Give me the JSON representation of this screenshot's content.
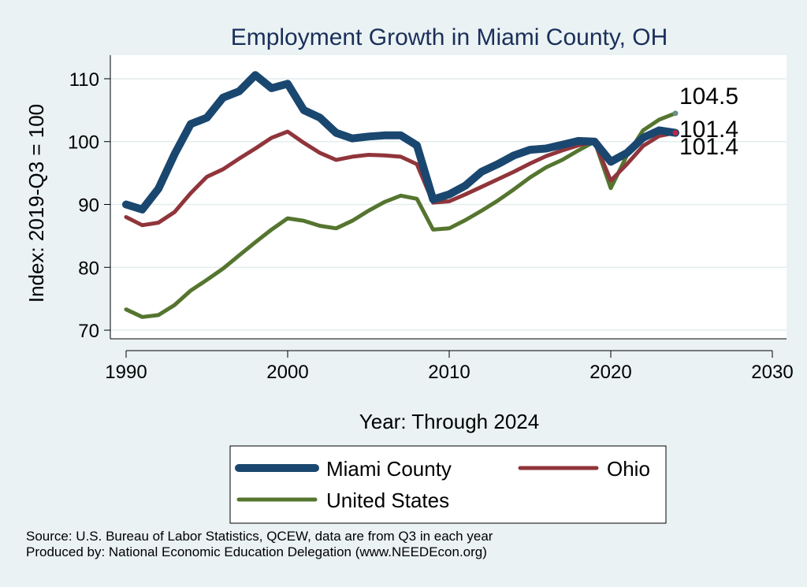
{
  "chart_data": {
    "type": "line",
    "title": "Employment Growth in Miami County, OH",
    "xlabel": "Year: Through 2024",
    "ylabel": "Index: 2019-Q3 = 100",
    "xlim": [
      1990,
      2030
    ],
    "ylim": [
      68,
      112
    ],
    "xticks": [
      1990,
      2000,
      2010,
      2020,
      2030
    ],
    "yticks": [
      70,
      80,
      90,
      100,
      110
    ],
    "grid": true,
    "legend_position": "bottom",
    "x": [
      1990,
      1991,
      1992,
      1993,
      1994,
      1995,
      1996,
      1997,
      1998,
      1999,
      2000,
      2001,
      2002,
      2003,
      2004,
      2005,
      2006,
      2007,
      2008,
      2009,
      2010,
      2011,
      2012,
      2013,
      2014,
      2015,
      2016,
      2017,
      2018,
      2019,
      2020,
      2021,
      2022,
      2023,
      2024
    ],
    "series": [
      {
        "name": "Miami  County",
        "color": "#1a476f",
        "values": [
          90.0,
          89.2,
          92.5,
          98.0,
          102.8,
          103.8,
          107.0,
          108.0,
          110.6,
          108.5,
          109.2,
          105.0,
          103.8,
          101.4,
          100.5,
          100.8,
          101.0,
          101.0,
          99.4,
          90.8,
          91.6,
          93.0,
          95.2,
          96.4,
          97.8,
          98.7,
          98.9,
          99.5,
          100.1,
          100.0,
          96.8,
          98.2,
          100.6,
          101.8,
          101.4
        ]
      },
      {
        "name": "Ohio",
        "color": "#90353b",
        "values": [
          88.0,
          86.7,
          87.1,
          88.8,
          91.8,
          94.4,
          95.6,
          97.3,
          98.9,
          100.6,
          101.6,
          99.8,
          98.2,
          97.1,
          97.6,
          97.9,
          97.8,
          97.6,
          96.4,
          90.3,
          90.5,
          91.6,
          92.8,
          94.0,
          95.2,
          96.5,
          97.7,
          98.6,
          99.4,
          100.0,
          93.8,
          96.4,
          99.3,
          100.9,
          101.4
        ]
      },
      {
        "name": "United States",
        "color": "#55752f",
        "values": [
          73.3,
          72.1,
          72.4,
          74.0,
          76.3,
          78.0,
          79.8,
          81.9,
          84.0,
          86.0,
          87.8,
          87.4,
          86.6,
          86.2,
          87.4,
          89.0,
          90.4,
          91.4,
          90.9,
          86.0,
          86.2,
          87.5,
          89.0,
          90.6,
          92.4,
          94.3,
          95.9,
          97.1,
          98.6,
          100.0,
          92.6,
          97.8,
          101.8,
          103.5,
          104.5
        ]
      }
    ],
    "end_labels": [
      {
        "text": "104.5",
        "color": "#6b8e8e"
      },
      {
        "text": "101.4",
        "color": "#c0234a"
      },
      {
        "text": "101.4",
        "color": "#c0234a"
      }
    ]
  },
  "legend": {
    "items": [
      "Miami  County",
      "Ohio",
      "United States"
    ]
  },
  "footer": {
    "source": "Source: U.S. Bureau of Labor Statistics, QCEW, data are from Q3 in each year",
    "produced_by": "Produced by: National Economic Education Delegation (www.NEEDEcon.org)"
  }
}
